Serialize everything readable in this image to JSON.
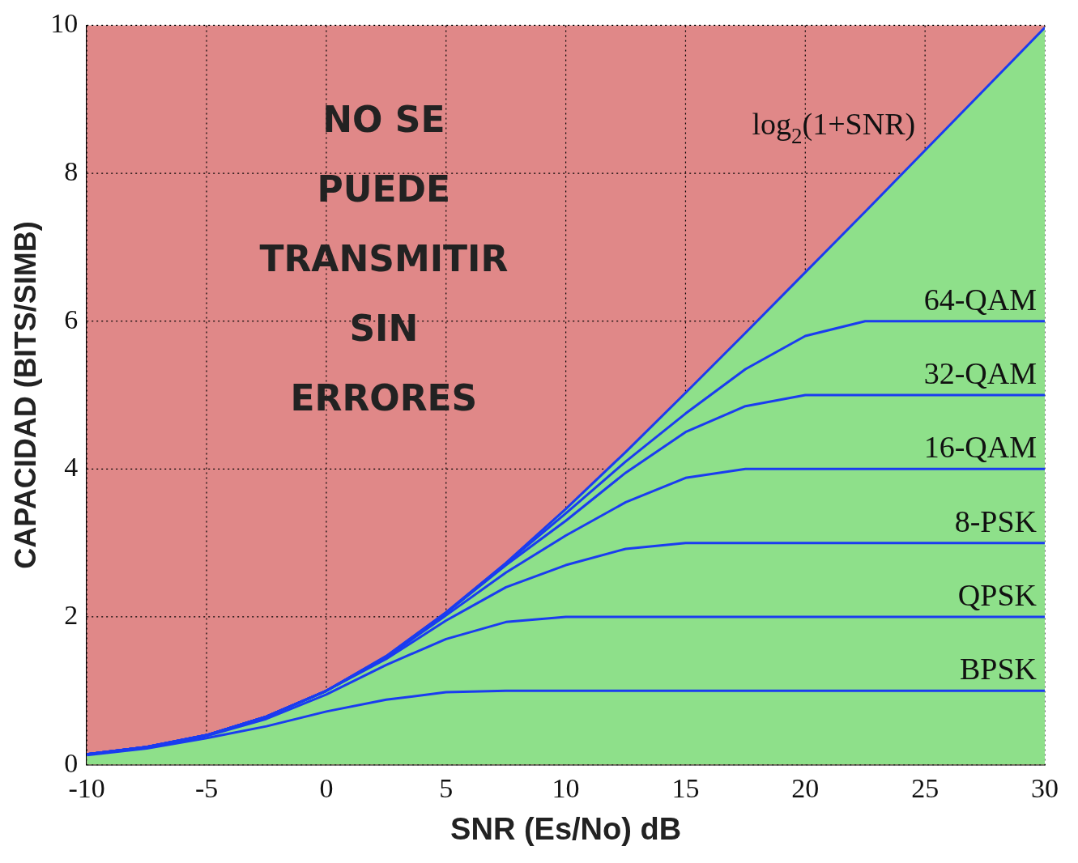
{
  "chart_data": {
    "type": "line",
    "xlabel": "SNR (Es/No) dB",
    "ylabel": "CAPACIDAD (BITS/SIMB)",
    "x": [
      -10,
      -7.5,
      -5,
      -2.5,
      0,
      2.5,
      5,
      7.5,
      10,
      12.5,
      15,
      17.5,
      20,
      22.5,
      25,
      27.5,
      30
    ],
    "xlim": [
      -10,
      30
    ],
    "xticks": [
      -10,
      -5,
      0,
      5,
      10,
      15,
      20,
      25,
      30
    ],
    "ylim": [
      0,
      10
    ],
    "yticks": [
      0,
      2,
      4,
      6,
      8,
      10
    ],
    "grid": true,
    "legend": false,
    "line_style": "solid",
    "marker": "none",
    "bands": [
      {
        "axis": "y",
        "from": 0,
        "to": 10,
        "color": "#e08888"
      }
    ],
    "annotations": [
      "NO SE PUEDE TRANSMITIR SIN ERRORES"
    ],
    "series": [
      {
        "type": "area",
        "color": "#8ee08a",
        "values": [
          0.14,
          0.24,
          0.4,
          0.65,
          1.0,
          1.47,
          2.06,
          2.73,
          3.46,
          4.23,
          5.03,
          5.84,
          6.66,
          7.48,
          8.31,
          9.14,
          9.97
        ]
      },
      {
        "name": "log$_{2}$(1+SNR)",
        "color": "#1a3cf0",
        "values": [
          0.14,
          0.24,
          0.4,
          0.65,
          1.0,
          1.47,
          2.06,
          2.73,
          3.46,
          4.23,
          5.03,
          5.84,
          6.66,
          7.48,
          8.31,
          9.14,
          9.97
        ]
      },
      {
        "name": "64-QAM",
        "color": "#1a3cf0",
        "values": [
          0.14,
          0.24,
          0.4,
          0.65,
          1.0,
          1.46,
          2.06,
          2.72,
          3.4,
          4.1,
          4.75,
          5.35,
          5.8,
          6.0,
          6.0,
          6.0,
          6.0
        ]
      },
      {
        "name": "32-QAM",
        "color": "#1a3cf0",
        "values": [
          0.14,
          0.24,
          0.4,
          0.65,
          1.0,
          1.46,
          2.05,
          2.7,
          3.3,
          3.95,
          4.5,
          4.85,
          5.0,
          5.0,
          5.0,
          5.0,
          5.0
        ]
      },
      {
        "name": "16-QAM",
        "color": "#1a3cf0",
        "values": [
          0.14,
          0.24,
          0.4,
          0.65,
          1.0,
          1.45,
          2.02,
          2.6,
          3.1,
          3.55,
          3.88,
          4.0,
          4.0,
          4.0,
          4.0,
          4.0,
          4.0
        ]
      },
      {
        "name": "8-PSK",
        "color": "#1a3cf0",
        "values": [
          0.14,
          0.24,
          0.4,
          0.65,
          1.0,
          1.43,
          1.95,
          2.4,
          2.7,
          2.92,
          3.0,
          3.0,
          3.0,
          3.0,
          3.0,
          3.0,
          3.0
        ]
      },
      {
        "name": "QPSK",
        "color": "#1a3cf0",
        "values": [
          0.14,
          0.24,
          0.39,
          0.62,
          0.95,
          1.35,
          1.7,
          1.93,
          2.0,
          2.0,
          2.0,
          2.0,
          2.0,
          2.0,
          2.0,
          2.0,
          2.0
        ]
      },
      {
        "name": "BPSK",
        "color": "#1a3cf0",
        "values": [
          0.13,
          0.22,
          0.36,
          0.52,
          0.72,
          0.88,
          0.98,
          1.0,
          1.0,
          1.0,
          1.0,
          1.0,
          1.0,
          1.0,
          1.0,
          1.0,
          1.0
        ]
      }
    ]
  }
}
